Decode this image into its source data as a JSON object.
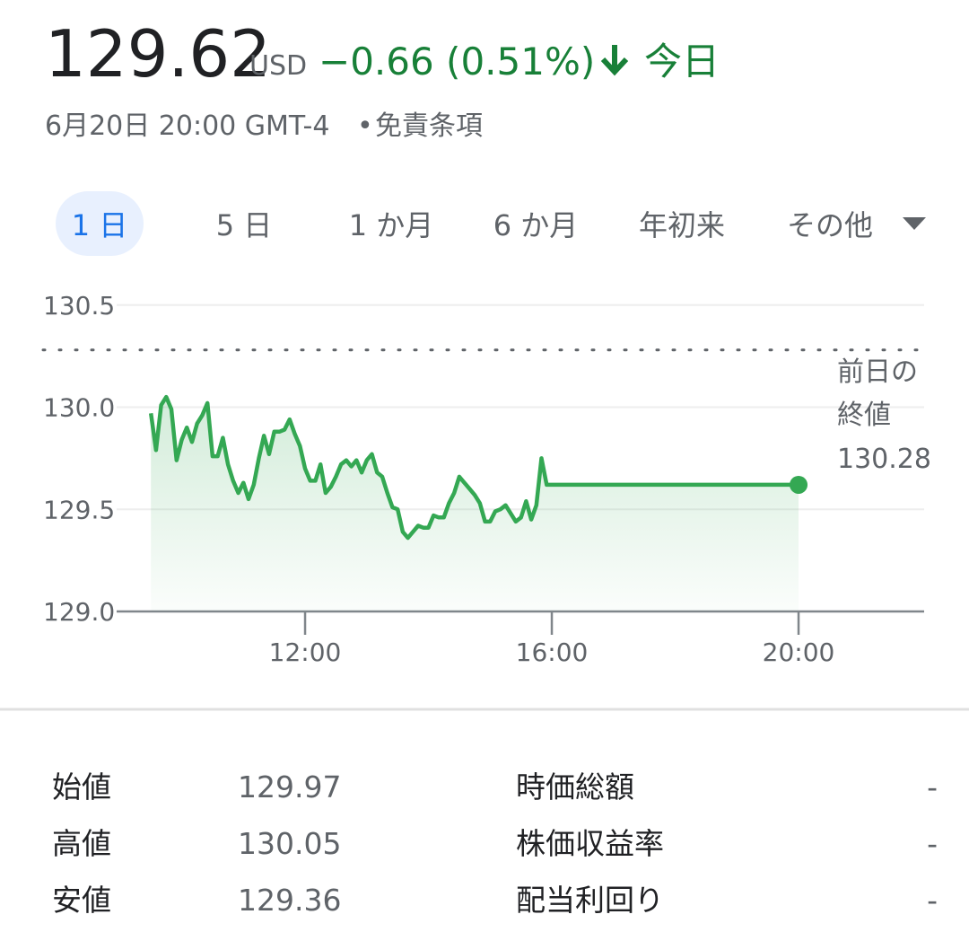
{
  "header": {
    "price": "129.62",
    "currency": "USD",
    "change": "−0.66 (0.51%)",
    "period": "今日",
    "subtitle_date": "6月20日 20:00 GMT-4",
    "separator": "•",
    "disclaimer": "免責条項"
  },
  "tabs": [
    "1 日",
    "5 日",
    "1 か月",
    "6 か月",
    "年初来",
    "その他"
  ],
  "chart_data": {
    "type": "line",
    "color": "#34a853",
    "x": [
      9.5,
      9.583,
      9.667,
      9.75,
      9.833,
      9.917,
      10,
      10.083,
      10.167,
      10.25,
      10.333,
      10.417,
      10.5,
      10.583,
      10.667,
      10.75,
      10.833,
      10.917,
      11,
      11.083,
      11.167,
      11.25,
      11.333,
      11.417,
      11.5,
      11.583,
      11.667,
      11.75,
      11.833,
      11.917,
      12,
      12.083,
      12.167,
      12.25,
      12.333,
      12.417,
      12.5,
      12.583,
      12.667,
      12.75,
      12.833,
      12.917,
      13,
      13.083,
      13.167,
      13.25,
      13.333,
      13.417,
      13.5,
      13.583,
      13.667,
      13.75,
      13.833,
      13.917,
      14,
      14.083,
      14.167,
      14.25,
      14.333,
      14.417,
      14.5,
      14.583,
      14.667,
      14.75,
      14.833,
      14.917,
      15,
      15.083,
      15.167,
      15.25,
      15.333,
      15.417,
      15.5,
      15.583,
      15.667,
      15.75,
      15.833,
      15.917,
      20
    ],
    "values": [
      129.97,
      129.79,
      130.01,
      130.05,
      129.99,
      129.74,
      129.84,
      129.9,
      129.83,
      129.92,
      129.96,
      130.02,
      129.76,
      129.76,
      129.85,
      129.72,
      129.64,
      129.58,
      129.63,
      129.55,
      129.62,
      129.75,
      129.86,
      129.77,
      129.88,
      129.88,
      129.89,
      129.94,
      129.87,
      129.81,
      129.7,
      129.64,
      129.64,
      129.72,
      129.58,
      129.61,
      129.66,
      129.72,
      129.74,
      129.71,
      129.74,
      129.68,
      129.74,
      129.77,
      129.68,
      129.66,
      129.58,
      129.51,
      129.5,
      129.39,
      129.36,
      129.39,
      129.42,
      129.41,
      129.41,
      129.47,
      129.46,
      129.46,
      129.53,
      129.58,
      129.66,
      129.63,
      129.6,
      129.57,
      129.53,
      129.44,
      129.44,
      129.49,
      129.5,
      129.52,
      129.48,
      129.44,
      129.46,
      129.54,
      129.45,
      129.52,
      129.75,
      129.62,
      129.62
    ],
    "xlim": [
      8.945,
      22.036
    ],
    "xticks": [
      {
        "value": 12,
        "label": "12:00"
      },
      {
        "value": 16,
        "label": "16:00"
      },
      {
        "value": 20,
        "label": "20:00"
      }
    ],
    "ylim": [
      129,
      130.6
    ],
    "yticks": [
      {
        "value": 129,
        "label": "129.0"
      },
      {
        "value": 129.5,
        "label": "129.5"
      },
      {
        "value": 130,
        "label": "130.0"
      },
      {
        "value": 130.5,
        "label": "130.5"
      }
    ],
    "grid": true,
    "reference_line": {
      "label": [
        "前日の",
        "終値"
      ],
      "value": 130.28
    }
  },
  "stats": {
    "left": [
      [
        "始値",
        "129.97"
      ],
      [
        "高値",
        "130.05"
      ],
      [
        "安値",
        "129.36"
      ]
    ],
    "right": [
      [
        "時価総額",
        "-"
      ],
      [
        "株価収益率",
        "-"
      ],
      [
        "配当利回り",
        "-"
      ]
    ]
  }
}
